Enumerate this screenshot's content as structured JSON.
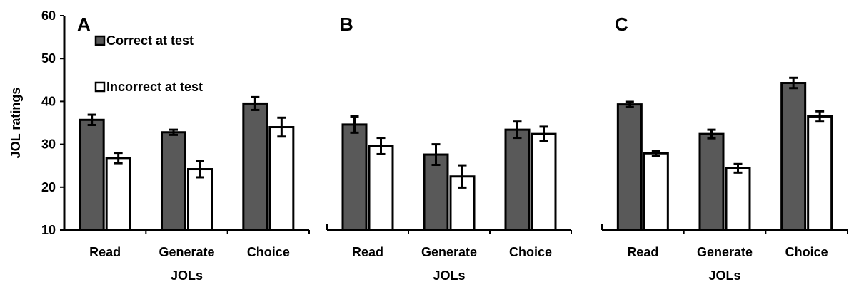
{
  "colors": {
    "correct": "#595959",
    "incorrect": "#ffffff",
    "stroke": "#000000"
  },
  "legend": {
    "correct_label": "Correct at test",
    "incorrect_label": "Incorrect at test"
  },
  "chart_data": [
    {
      "type": "bar",
      "panel": "A",
      "title": "A",
      "categories": [
        "Read",
        "Generate",
        "Choice"
      ],
      "xlabel": "JOLs",
      "ylabel": "JOL ratings",
      "ylim": [
        10,
        60
      ],
      "yticks": [
        10,
        20,
        30,
        40,
        50,
        60
      ],
      "series": [
        {
          "name": "Correct at test",
          "values": [
            35.7,
            32.8,
            39.5
          ],
          "errors": [
            1.2,
            0.6,
            1.5
          ]
        },
        {
          "name": "Incorrect at test",
          "values": [
            26.8,
            24.2,
            34.0
          ],
          "errors": [
            1.2,
            1.9,
            2.2
          ]
        }
      ]
    },
    {
      "type": "bar",
      "panel": "B",
      "title": "B",
      "categories": [
        "Read",
        "Generate",
        "Choice"
      ],
      "xlabel": "JOLs",
      "ylabel": "",
      "ylim": [
        10,
        60
      ],
      "series": [
        {
          "name": "Correct at test",
          "values": [
            34.6,
            27.6,
            33.4
          ],
          "errors": [
            1.9,
            2.4,
            1.9
          ]
        },
        {
          "name": "Incorrect at test",
          "values": [
            29.6,
            22.5,
            32.4
          ],
          "errors": [
            1.9,
            2.6,
            1.7
          ]
        }
      ]
    },
    {
      "type": "bar",
      "panel": "C",
      "title": "C",
      "categories": [
        "Read",
        "Generate",
        "Choice"
      ],
      "xlabel": "JOLs",
      "ylabel": "",
      "ylim": [
        10,
        60
      ],
      "series": [
        {
          "name": "Correct at test",
          "values": [
            39.3,
            32.4,
            44.3
          ],
          "errors": [
            0.6,
            1.0,
            1.2
          ]
        },
        {
          "name": "Incorrect at test",
          "values": [
            27.9,
            24.4,
            36.5
          ],
          "errors": [
            0.6,
            1.0,
            1.2
          ]
        }
      ]
    }
  ]
}
